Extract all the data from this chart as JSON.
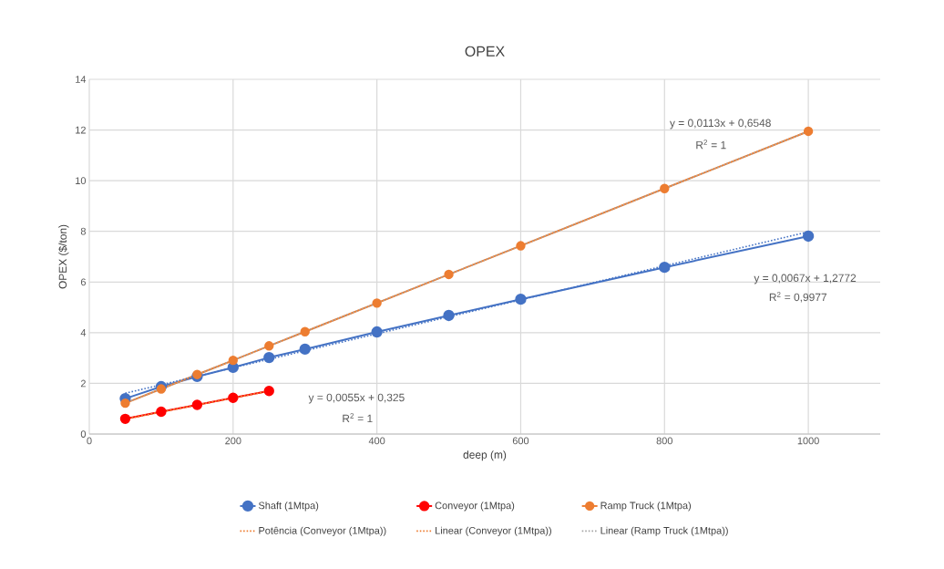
{
  "chart_data": {
    "type": "line",
    "title": "OPEX",
    "xlabel": "deep (m)",
    "ylabel": "OPEX ($/ton)",
    "x": [
      50,
      100,
      150,
      200,
      250,
      300,
      400,
      500,
      600,
      800,
      1000
    ],
    "series": [
      {
        "name": "Shaft (1Mtpa)",
        "color": "#4472c4",
        "marker": "circle",
        "line_style": "solid",
        "values": [
          1.4,
          1.87,
          2.27,
          2.63,
          3.02,
          3.35,
          4.03,
          4.68,
          5.32,
          6.58,
          7.81
        ]
      },
      {
        "name": "Conveyor (1Mtpa)",
        "color": "#ff0000",
        "marker": "circle",
        "line_style": "solid",
        "x": [
          50,
          100,
          150,
          200,
          250
        ],
        "values": [
          0.6,
          0.88,
          1.15,
          1.43,
          1.7
        ]
      },
      {
        "name": "Ramp Truck (1Mtpa)",
        "color": "#ed7d31",
        "marker": "circle",
        "line_style": "solid",
        "values": [
          1.22,
          1.78,
          2.35,
          2.91,
          3.48,
          4.04,
          5.17,
          6.3,
          7.43,
          9.69,
          11.95
        ]
      },
      {
        "name": "Potência (Conveyor (1Mtpa))",
        "color": "#ed7d31",
        "marker": "none",
        "line_style": "dotted",
        "x": [
          50,
          100,
          150,
          200,
          250
        ],
        "values": [
          0.58,
          0.87,
          1.15,
          1.42,
          1.7
        ]
      },
      {
        "name": "Linear (Conveyor (1Mtpa))",
        "color": "#ed7d31",
        "marker": "none",
        "line_style": "dotted",
        "x": [
          50,
          250
        ],
        "values": [
          0.6,
          1.7
        ]
      },
      {
        "name": "Linear (Ramp Truck (1Mtpa))",
        "color": "#a5a5a5",
        "marker": "none",
        "line_style": "dotted",
        "x": [
          50,
          1000
        ],
        "values": [
          1.22,
          11.95
        ]
      },
      {
        "color": "#4472c4",
        "marker": "none",
        "line_style": "dotted",
        "x": [
          50,
          1000
        ],
        "values": [
          1.61,
          7.98
        ]
      }
    ],
    "xlim": [
      0,
      1100
    ],
    "xticks": [
      0,
      200,
      400,
      600,
      800,
      1000
    ],
    "ylim": [
      0,
      14
    ],
    "yticks": [
      0,
      2,
      4,
      6,
      8,
      10,
      12,
      14
    ],
    "grid": true,
    "legend": "bottom",
    "annotations": [
      "y = 0,0113x + 0,6548",
      "R$^{2}$ = 1",
      "y = 0,0067x + 1,2772",
      "R$^{2}$ = 0,9977",
      "y = 0,0055x + 0,325",
      "R$^{2}$ = 1"
    ]
  }
}
